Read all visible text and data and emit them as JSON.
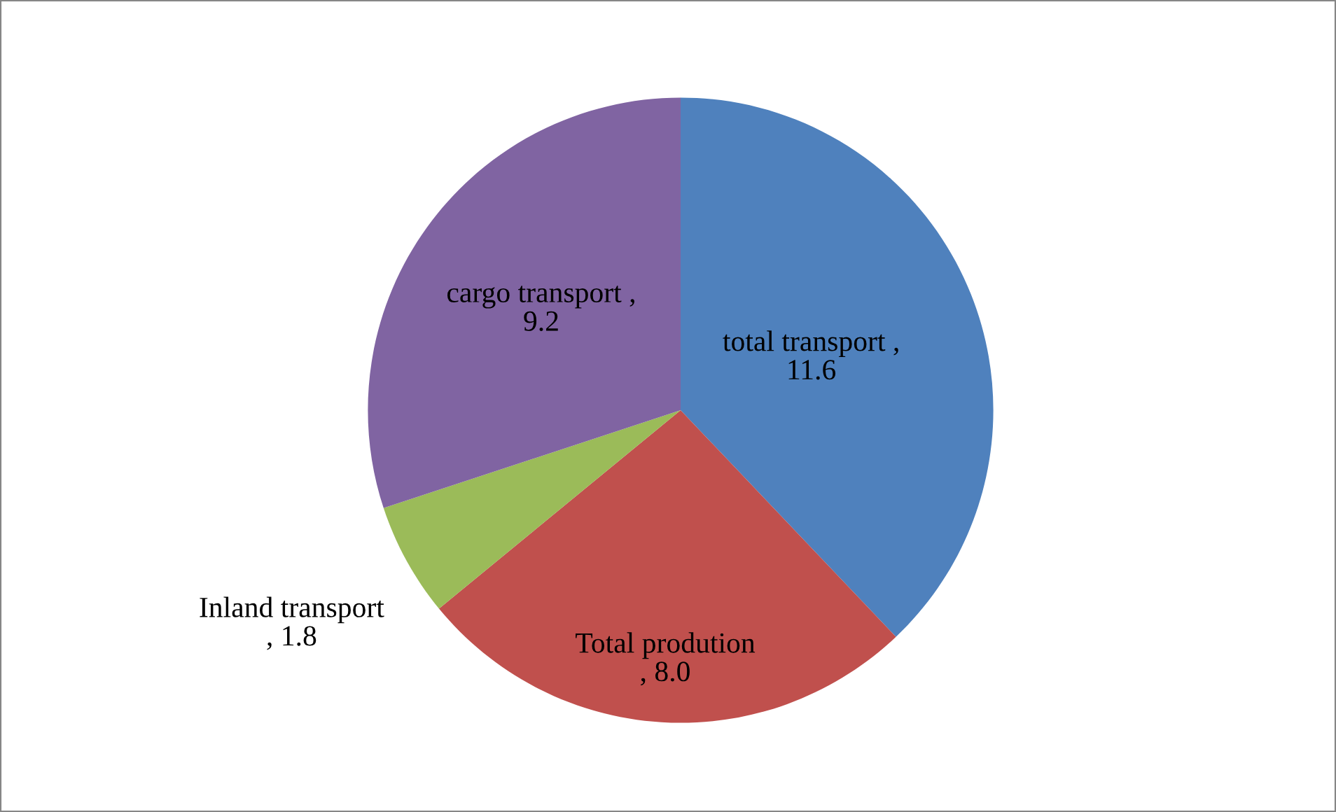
{
  "chart_data": {
    "type": "pie",
    "categories": [
      "total transport",
      "Total prodution",
      "Inland transport",
      "cargo transport"
    ],
    "values": [
      11.6,
      8.0,
      1.8,
      9.2
    ],
    "colors": [
      "#4f81bd",
      "#c0504d",
      "#9bbb59",
      "#8064a2"
    ],
    "value_labels": [
      ",\n11.6",
      "\n, 8.0",
      "\n, 1.8",
      ",\n9.2"
    ],
    "legend": false
  }
}
